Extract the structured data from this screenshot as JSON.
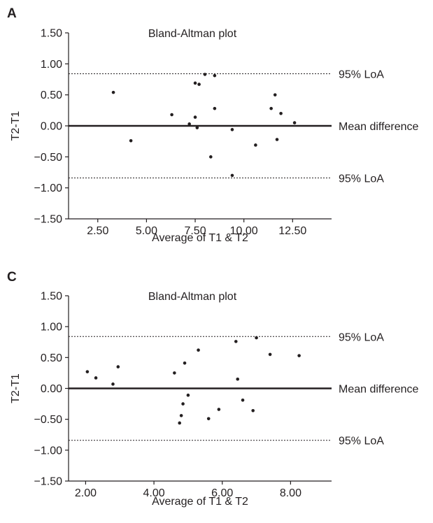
{
  "chart_data": [
    {
      "type": "scatter",
      "panel_label": "A",
      "title": "Bland-Altman plot",
      "xlabel": "Average of T1 & T2",
      "ylabel": "T2-T1",
      "xlim": [
        1,
        14.5
      ],
      "ylim": [
        -1.5,
        1.5
      ],
      "xticks": [
        2.5,
        5.0,
        7.5,
        10.0,
        12.5
      ],
      "xtick_labels": [
        "2.50",
        "5.00",
        "7.50",
        "10.00",
        "12.50"
      ],
      "yticks": [
        1.5,
        1.0,
        0.5,
        0.0,
        -0.5,
        -1.0,
        -1.5
      ],
      "ytick_labels": [
        "1.50",
        "1.00",
        "0.50",
        "0.00",
        "−0.50",
        "−1.00",
        "−1.50"
      ],
      "grid": false,
      "reference_lines": [
        {
          "label": "95% LoA",
          "y": 0.84,
          "style": "dotted"
        },
        {
          "label": "Mean difference",
          "y": 0.0,
          "style": "solid"
        },
        {
          "label": "95% LoA",
          "y": -0.84,
          "style": "dotted"
        }
      ],
      "points": [
        {
          "x": 3.3,
          "y": 0.54
        },
        {
          "x": 4.2,
          "y": -0.24
        },
        {
          "x": 6.3,
          "y": 0.18
        },
        {
          "x": 7.2,
          "y": 0.03
        },
        {
          "x": 7.5,
          "y": 0.69
        },
        {
          "x": 7.5,
          "y": 0.14
        },
        {
          "x": 7.6,
          "y": -0.03
        },
        {
          "x": 7.7,
          "y": 0.67
        },
        {
          "x": 8.0,
          "y": 0.83
        },
        {
          "x": 8.3,
          "y": -0.5
        },
        {
          "x": 8.5,
          "y": 0.81
        },
        {
          "x": 8.5,
          "y": 0.28
        },
        {
          "x": 9.4,
          "y": -0.06
        },
        {
          "x": 9.4,
          "y": -0.8
        },
        {
          "x": 10.6,
          "y": -0.31
        },
        {
          "x": 11.4,
          "y": 0.28
        },
        {
          "x": 11.6,
          "y": 0.5
        },
        {
          "x": 11.7,
          "y": -0.22
        },
        {
          "x": 11.9,
          "y": 0.2
        },
        {
          "x": 12.6,
          "y": 0.05
        }
      ]
    },
    {
      "type": "scatter",
      "panel_label": "C",
      "title": "Bland-Altman plot",
      "xlabel": "Average of T1 & T2",
      "ylabel": "T2-T1",
      "xlim": [
        1.5,
        9.2
      ],
      "ylim": [
        -1.5,
        1.5
      ],
      "xticks": [
        2.0,
        4.0,
        6.0,
        8.0
      ],
      "xtick_labels": [
        "2.00",
        "4.00",
        "6.00",
        "8.00"
      ],
      "yticks": [
        1.5,
        1.0,
        0.5,
        0.0,
        -0.5,
        -1.0,
        -1.5
      ],
      "ytick_labels": [
        "1.50",
        "1.00",
        "0.50",
        "0.00",
        "−0.50",
        "−1.00",
        "−1.50"
      ],
      "grid": false,
      "reference_lines": [
        {
          "label": "95% LoA",
          "y": 0.84,
          "style": "dotted"
        },
        {
          "label": "Mean difference",
          "y": 0.0,
          "style": "solid"
        },
        {
          "label": "95% LoA",
          "y": -0.84,
          "style": "dotted"
        }
      ],
      "points": [
        {
          "x": 2.05,
          "y": 0.27
        },
        {
          "x": 2.3,
          "y": 0.17
        },
        {
          "x": 2.8,
          "y": 0.07
        },
        {
          "x": 2.95,
          "y": 0.35
        },
        {
          "x": 4.6,
          "y": 0.25
        },
        {
          "x": 4.75,
          "y": -0.56
        },
        {
          "x": 4.8,
          "y": -0.44
        },
        {
          "x": 4.85,
          "y": -0.25
        },
        {
          "x": 4.9,
          "y": 0.41
        },
        {
          "x": 5.0,
          "y": -0.11
        },
        {
          "x": 5.3,
          "y": 0.62
        },
        {
          "x": 5.6,
          "y": -0.49
        },
        {
          "x": 5.9,
          "y": -0.34
        },
        {
          "x": 6.4,
          "y": 0.76
        },
        {
          "x": 6.45,
          "y": 0.15
        },
        {
          "x": 6.6,
          "y": -0.19
        },
        {
          "x": 6.9,
          "y": -0.36
        },
        {
          "x": 7.0,
          "y": 0.82
        },
        {
          "x": 7.4,
          "y": 0.55
        },
        {
          "x": 8.25,
          "y": 0.53
        }
      ]
    }
  ]
}
